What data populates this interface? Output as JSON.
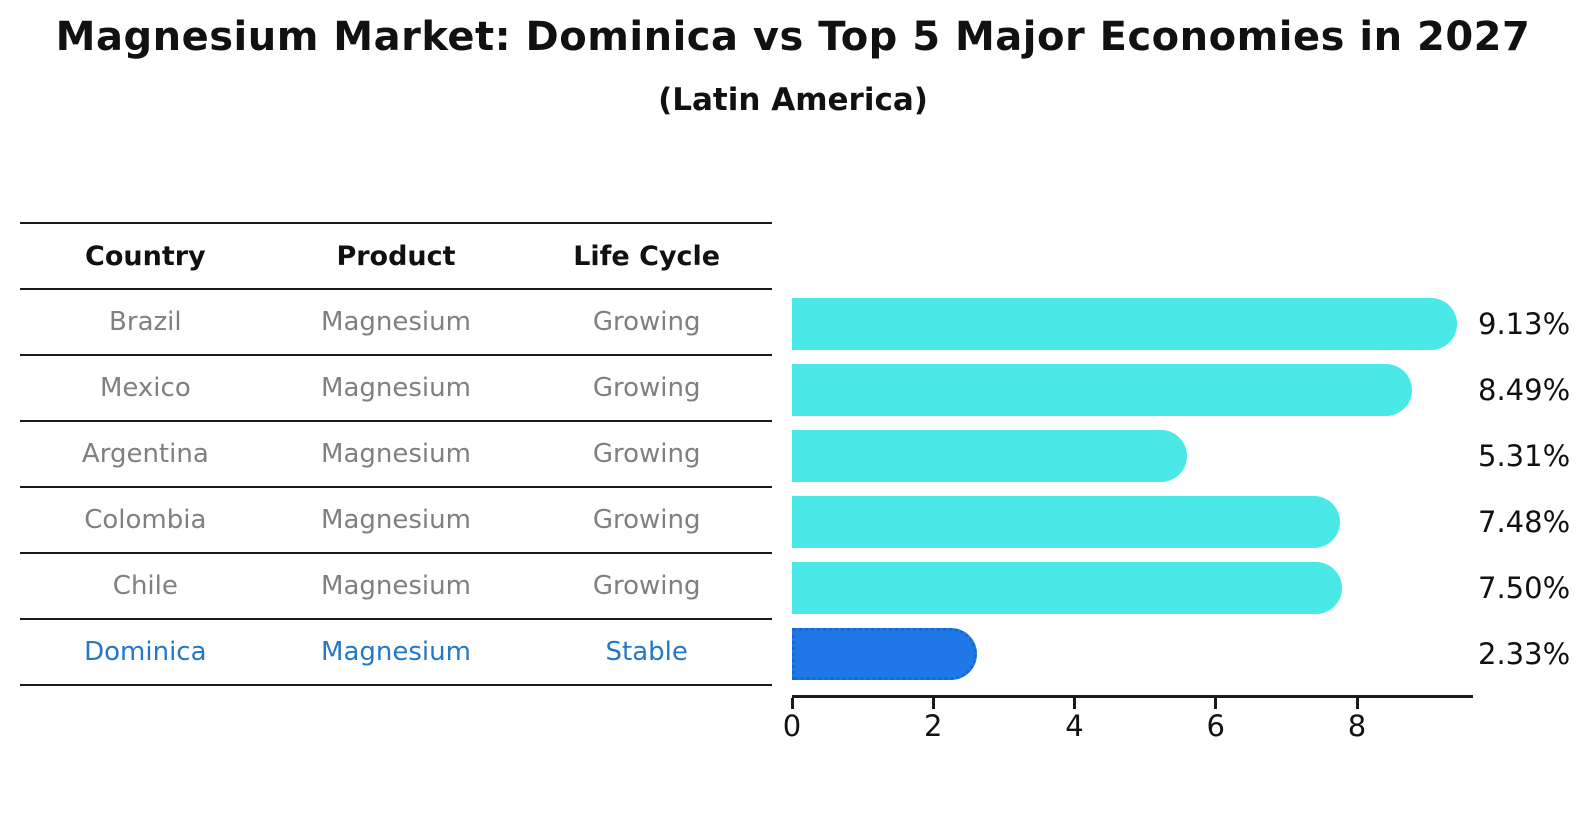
{
  "title": "Magnesium Market: Dominica vs Top 5 Major Economies in 2027",
  "subtitle": "(Latin America)",
  "table": {
    "headers": [
      "Country",
      "Product",
      "Life Cycle"
    ],
    "rows": [
      {
        "country": "Brazil",
        "product": "Magnesium",
        "life_cycle": "Growing",
        "highlighted": false
      },
      {
        "country": "Mexico",
        "product": "Magnesium",
        "life_cycle": "Growing",
        "highlighted": false
      },
      {
        "country": "Argentina",
        "product": "Magnesium",
        "life_cycle": "Growing",
        "highlighted": false
      },
      {
        "country": "Colombia",
        "product": "Magnesium",
        "life_cycle": "Growing",
        "highlighted": false
      },
      {
        "country": "Chile",
        "product": "Magnesium",
        "life_cycle": "Growing",
        "highlighted": false
      },
      {
        "country": "Dominica",
        "product": "Magnesium",
        "life_cycle": "Stable",
        "highlighted": true
      }
    ]
  },
  "chart_data": {
    "type": "bar",
    "orientation": "horizontal",
    "title": "Magnesium Market: Dominica vs Top 5 Major Economies in 2027",
    "subtitle": "(Latin America)",
    "categories": [
      "Brazil",
      "Mexico",
      "Argentina",
      "Colombia",
      "Chile",
      "Dominica"
    ],
    "values": [
      9.13,
      8.49,
      5.31,
      7.48,
      7.5,
      2.33
    ],
    "value_labels": [
      "9.13%",
      "8.49%",
      "5.31%",
      "7.48%",
      "7.50%",
      "2.33%"
    ],
    "xlabel": "",
    "ylabel": "",
    "xlim": [
      0,
      9.6
    ],
    "xticks": [
      "0",
      "2",
      "4",
      "6",
      "8"
    ],
    "xtick_values": [
      0,
      2,
      4,
      6,
      8
    ],
    "grid": false,
    "legend": false,
    "highlight_index": 5,
    "bar_color": "#4BE8E8",
    "highlight_bar_color": "#2078E8",
    "highlight_bar_border_style": "dotted"
  },
  "colors": {
    "bar_default": "#4BE8E8",
    "bar_highlight": "#2078E8",
    "highlight_text": "#2478C8",
    "row_text": "#808080",
    "header_text": "#111111",
    "axis_line": "#1a1a1a"
  }
}
